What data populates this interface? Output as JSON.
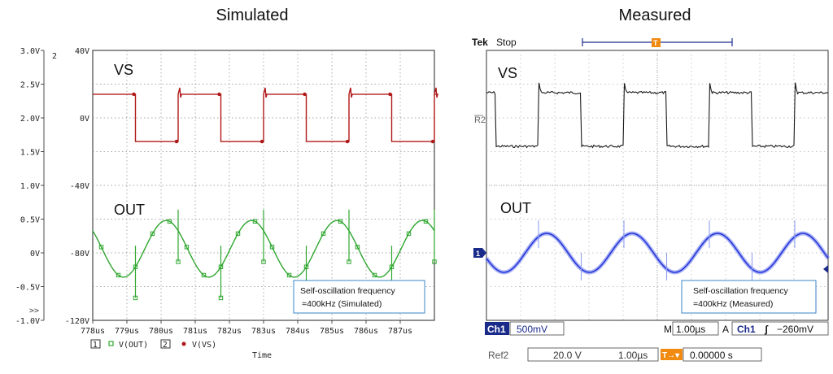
{
  "titles": {
    "simulated": "Simulated",
    "measured": "Measured"
  },
  "chart_data": [
    {
      "type": "line",
      "title": "Simulated",
      "xlabel": "Time",
      "x_unit": "us",
      "xlim": [
        778,
        788
      ],
      "x_ticks": [
        "778us",
        "779us",
        "780us",
        "781us",
        "782us",
        "783us",
        "784us",
        "785us",
        "786us",
        "787us"
      ],
      "y_left_ticks": [
        "3.0V",
        "2.5V",
        "2.0V",
        "1.5V",
        "1.0V",
        "0.5V",
        "0V",
        "-0.5V",
        "-1.0V"
      ],
      "y_left_axis_label": "2",
      "y_left_marker": ">>",
      "y_right_ticks": [
        "40V",
        "0V",
        "-40V",
        "-80V",
        "-120V"
      ],
      "ylim_left": [
        -1.0,
        3.0
      ],
      "ylim_right": [
        -120,
        40
      ],
      "colors": {
        "vs": "#b01818",
        "out": "#2ea62e"
      },
      "series": [
        {
          "name": "V(OUT)",
          "axis": "left",
          "shape": "sine",
          "amplitude_v": 0.42,
          "offset_v": 0.06,
          "frequency_khz": 400,
          "peak_at_us": 780.15
        },
        {
          "name": "V(VS)",
          "axis": "right",
          "shape": "square",
          "high_v": 14,
          "low_v": -14,
          "frequency_khz": 400,
          "rise_at_us": 778.0,
          "duty": 0.5
        }
      ],
      "trace_labels": [
        "VS",
        "OUT"
      ],
      "legend": [
        {
          "index": "1",
          "marker": "square",
          "label": "V(OUT)"
        },
        {
          "index": "2",
          "marker": "dot",
          "label": "V(VS)"
        }
      ],
      "annotation": [
        "Self-oscillation frequency",
        "=400kHz (Simulated)"
      ]
    },
    {
      "type": "line",
      "title": "Measured",
      "time_per_div": "1.00µs",
      "colors": {
        "vs": "#1a1a1a",
        "out": "#2838d8"
      },
      "series": [
        {
          "name": "VS",
          "shape": "square"
        },
        {
          "name": "OUT",
          "shape": "sine"
        }
      ],
      "trace_labels": [
        "VS",
        "OUT"
      ],
      "scope": {
        "brand": "Tek",
        "status": "Stop",
        "trigger_marker": "T",
        "ref_marker": "R2",
        "ch_marker": "1",
        "ch1_label": "Ch1",
        "ch1_scale": "500mV",
        "timebase_prefix": "M",
        "timebase": "1.00µs",
        "trigger_prefix": "A",
        "trigger_channel": "Ch1",
        "trigger_slope": "ʃ",
        "trigger_level": "−260mV",
        "ref_label": "Ref2",
        "ref_scale": "20.0 V",
        "ref_time": "1.00µs",
        "pos_icon": "T→▾",
        "pos_value": "0.00000 s"
      },
      "annotation": [
        "Self-oscillation frequency",
        "=400kHz (Measured)"
      ]
    }
  ]
}
